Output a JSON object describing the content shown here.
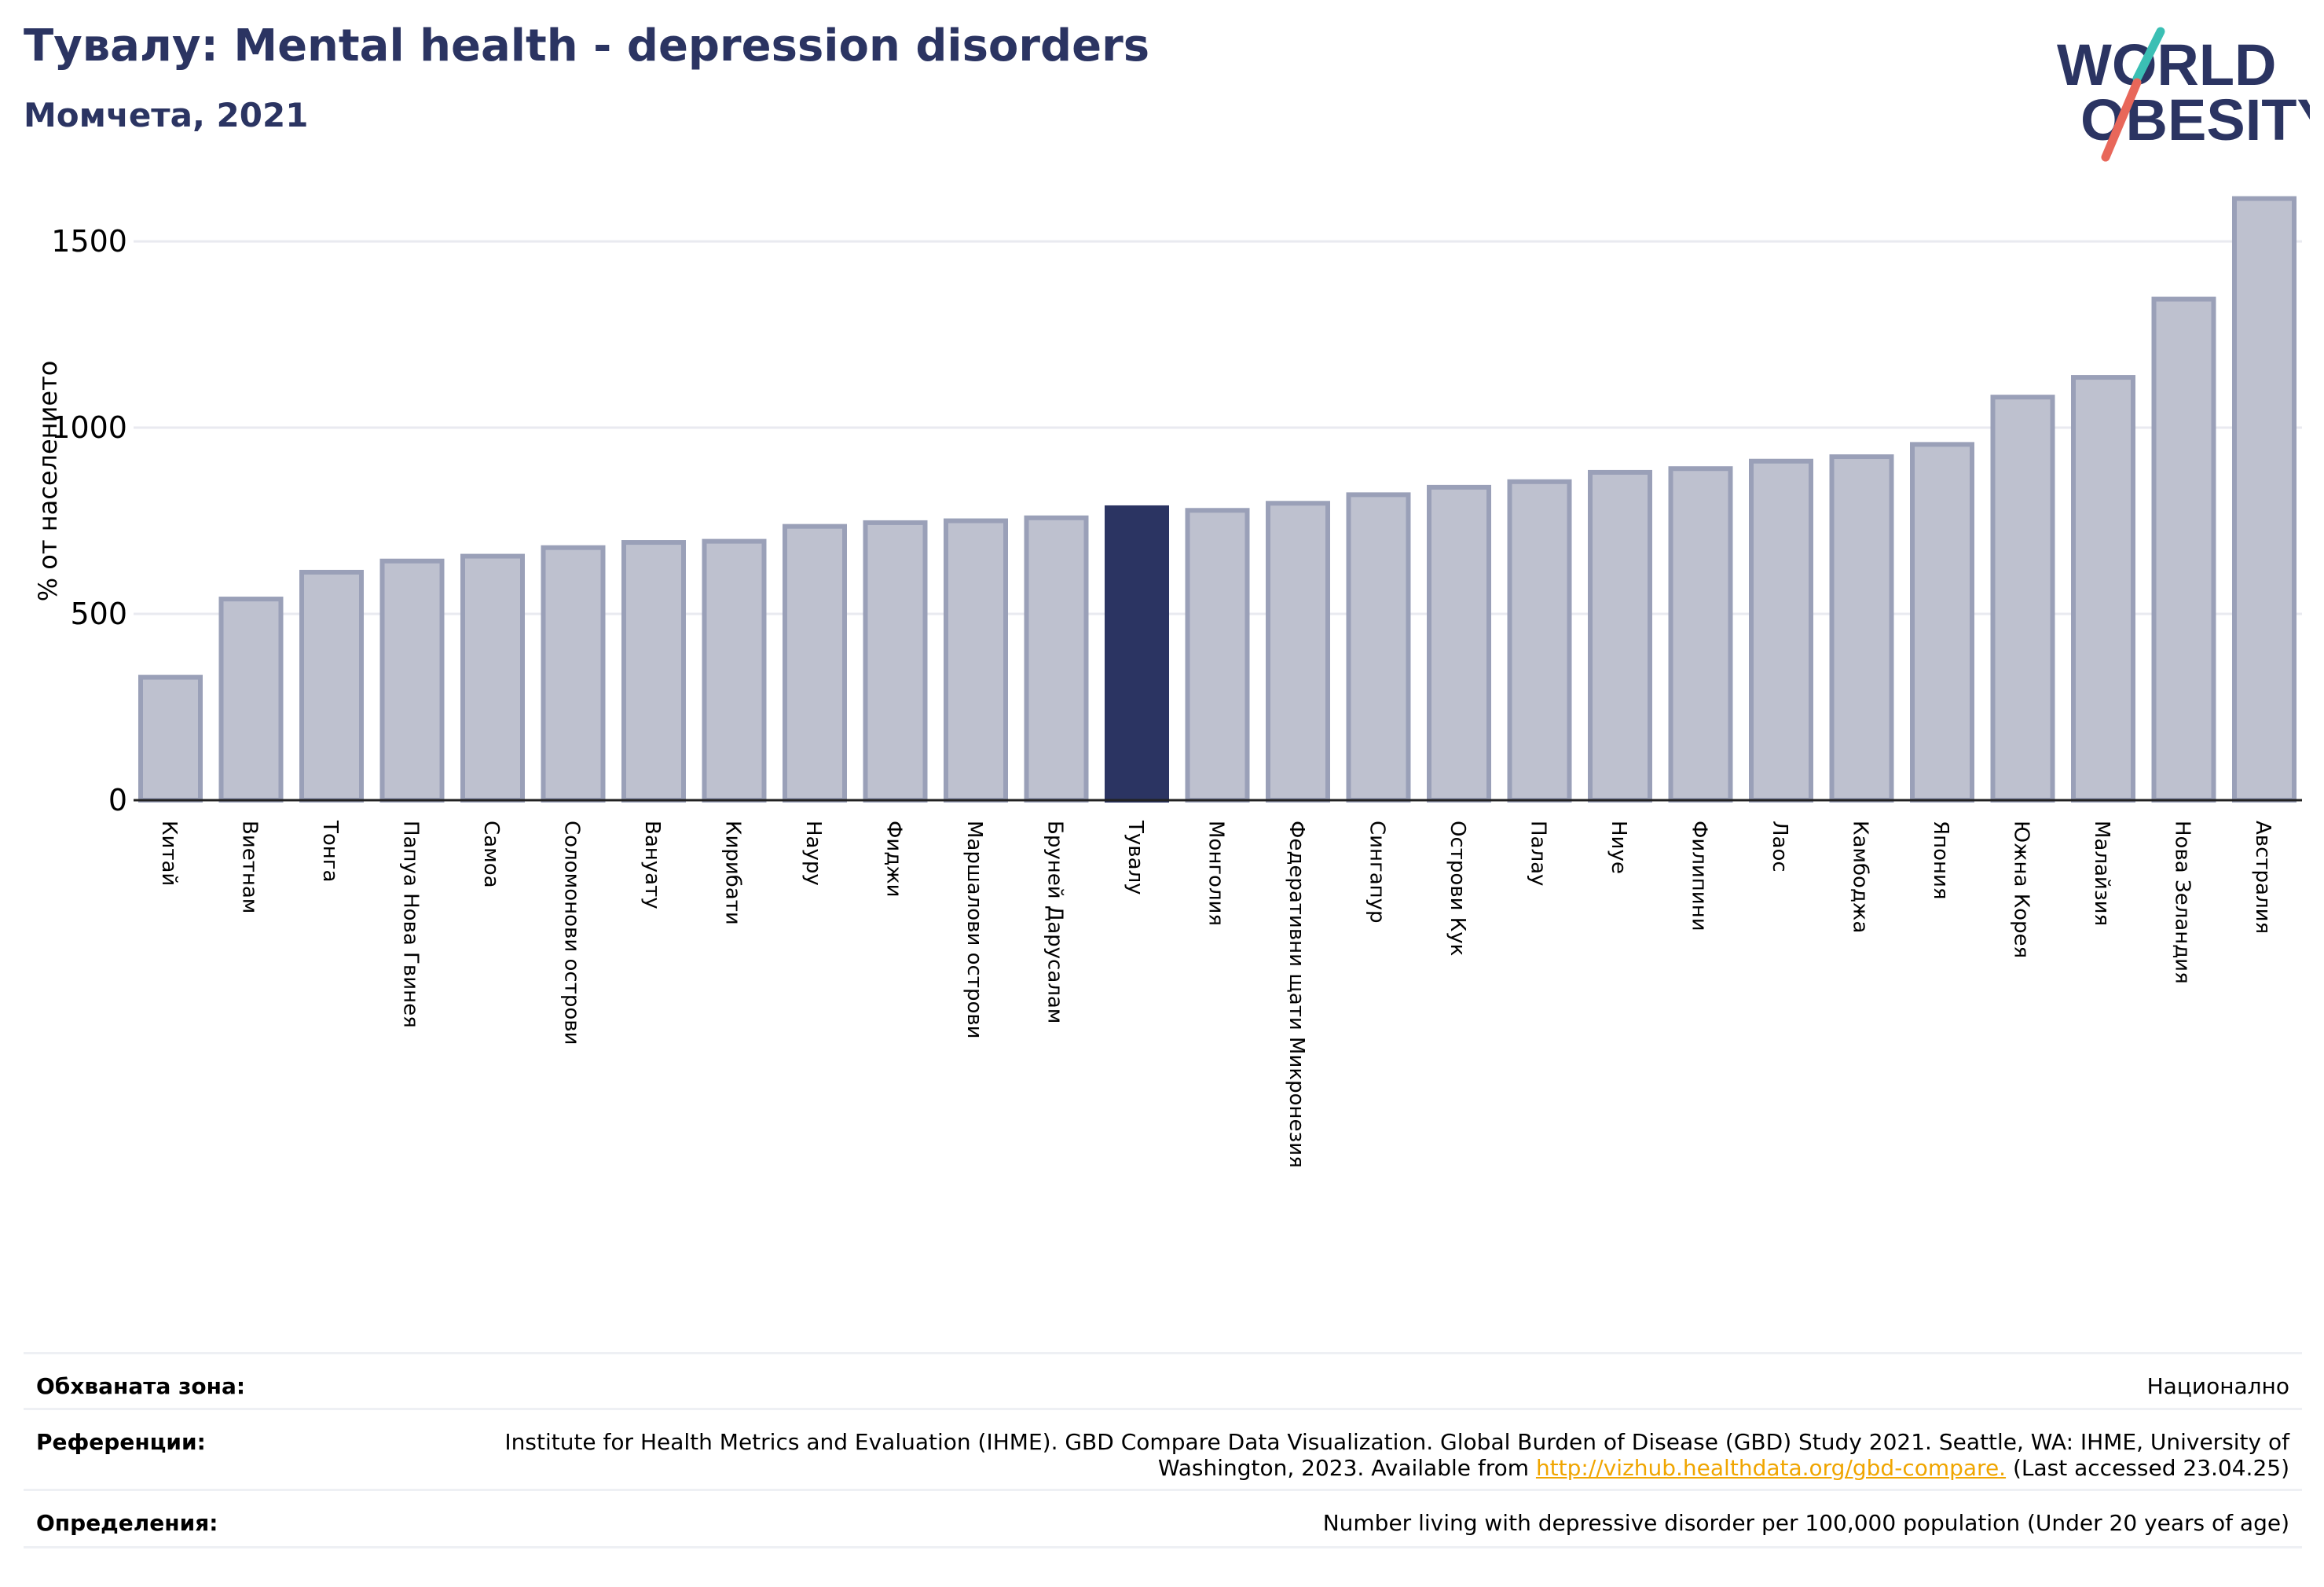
{
  "header": {
    "title": "Тувалу: Mental health - depression disorders",
    "subtitle": "Момчета, 2021"
  },
  "logo": {
    "line1": "WORLD",
    "line2": "OBESITY",
    "colors": {
      "text": "#2b3462",
      "slash_top": "#3bbfb4",
      "slash_bottom": "#e8675a"
    }
  },
  "chart_data": {
    "type": "bar",
    "ylabel": "% от населението",
    "xlabel": "",
    "ylim": [
      0,
      1650
    ],
    "yticks": [
      0,
      500,
      1000,
      1500
    ],
    "grid": true,
    "highlight": "Тувалу",
    "colors": {
      "bar": "#bec1cf",
      "bar_edge": "#9aa0b8",
      "highlight": "#2b3462"
    },
    "categories": [
      "Китай",
      "Виетнам",
      "Тонга",
      "Папуа Нова Гвинея",
      "Самоа",
      "Соломонови острови",
      "Вануату",
      "Кирибати",
      "Науру",
      "Фиджи",
      "Маршалови острови",
      "Бруней Дарусалам",
      "Тувалу",
      "Монголия",
      "Федеративни щати Микронезия",
      "Сингапур",
      "Острови Кук",
      "Палау",
      "Ниуе",
      "Филипини",
      "Лаос",
      "Камбоджа",
      "Япония",
      "Южна Корея",
      "Малайзия",
      "Нова Зеландия",
      "Австралия"
    ],
    "values": [
      330,
      540,
      612,
      642,
      655,
      678,
      692,
      695,
      735,
      745,
      750,
      758,
      785,
      778,
      797,
      820,
      840,
      855,
      880,
      890,
      910,
      922,
      955,
      1082,
      1135,
      1345,
      1615
    ]
  },
  "info": {
    "coverage_label": "Обхваната зона:",
    "coverage_value": "Национално",
    "references_label": "Референции:",
    "references_text": "Institute for Health Metrics and Evaluation (IHME). GBD Compare Data Visualization. Global Burden of Disease (GBD) Study 2021. Seattle, WA: IHME, University of Washington, 2023. Available from",
    "references_link": "http://vizhub.healthdata.org/gbd-compare.",
    "references_suffix": "(Last accessed 23.04.25)",
    "definitions_label": "Определения:",
    "definitions_value": "Number living with depressive disorder per 100,000 population (Under 20 years of age)"
  }
}
